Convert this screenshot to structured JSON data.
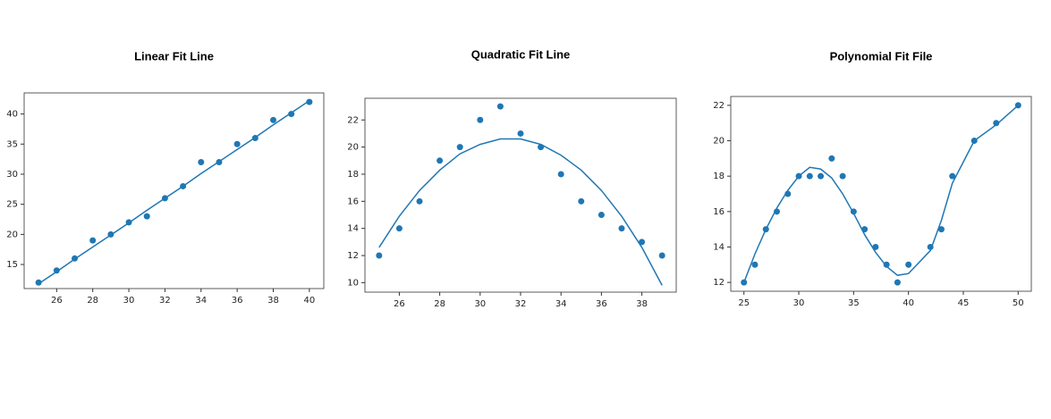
{
  "chart_data": [
    {
      "type": "scatter",
      "title": "Linear Fit Line",
      "x": [
        25,
        26,
        27,
        28,
        29,
        30,
        31,
        32,
        33,
        34,
        35,
        36,
        37,
        38,
        39,
        40
      ],
      "series": [
        {
          "mode": "markers",
          "color": "#1f77b4",
          "values": [
            12,
            14,
            16,
            19,
            20,
            22,
            23,
            26,
            28,
            32,
            32,
            35,
            36,
            39,
            40,
            42
          ]
        },
        {
          "mode": "line",
          "color": "#1f77b4",
          "values": [
            11.8,
            13.8,
            15.9,
            17.9,
            19.9,
            21.9,
            24.0,
            26.0,
            28.0,
            30.1,
            32.1,
            34.1,
            36.1,
            38.2,
            40.2,
            42.2
          ]
        }
      ],
      "xlim": [
        24.2,
        40.8
      ],
      "ylim": [
        11,
        43.5
      ],
      "xticks": [
        26,
        28,
        30,
        32,
        34,
        36,
        38,
        40
      ],
      "yticks": [
        15,
        20,
        25,
        30,
        35,
        40
      ]
    },
    {
      "type": "scatter",
      "title": "Quadratic Fit Line",
      "x": [
        25,
        26,
        27,
        28,
        29,
        30,
        31,
        32,
        33,
        34,
        35,
        36,
        37,
        38,
        39
      ],
      "series": [
        {
          "mode": "markers",
          "color": "#1f77b4",
          "values": [
            12,
            14,
            16,
            19,
            20,
            22,
            23,
            21,
            20,
            18,
            16,
            15,
            14,
            13,
            12
          ]
        },
        {
          "mode": "line",
          "color": "#1f77b4",
          "values": [
            12.6,
            14.9,
            16.8,
            18.3,
            19.5,
            20.2,
            20.6,
            20.6,
            20.2,
            19.4,
            18.3,
            16.8,
            14.9,
            12.6,
            9.8
          ]
        }
      ],
      "xlim": [
        24.3,
        39.7
      ],
      "ylim": [
        9.3,
        23.6
      ],
      "xticks": [
        26,
        28,
        30,
        32,
        34,
        36,
        38
      ],
      "yticks": [
        10,
        12,
        14,
        16,
        18,
        20,
        22
      ]
    },
    {
      "type": "scatter",
      "title": "Polynomial Fit File",
      "x": [
        25,
        26,
        27,
        28,
        29,
        30,
        31,
        32,
        33,
        34,
        35,
        36,
        37,
        38,
        39,
        40,
        42,
        43,
        44,
        46,
        48,
        50
      ],
      "series": [
        {
          "mode": "markers",
          "color": "#1f77b4",
          "values": [
            12,
            13,
            15,
            16,
            17,
            18,
            18,
            18,
            19,
            18,
            16,
            15,
            14,
            13,
            12,
            13,
            14,
            15,
            18,
            20,
            21,
            22
          ]
        },
        {
          "mode": "line",
          "color": "#1f77b4",
          "values": [
            12.0,
            13.6,
            15.0,
            16.2,
            17.2,
            18.0,
            18.5,
            18.4,
            17.9,
            17.0,
            15.9,
            14.7,
            13.7,
            12.9,
            12.4,
            12.5,
            13.8,
            15.5,
            17.6,
            20.0,
            20.9,
            22.0
          ]
        }
      ],
      "xlim": [
        23.8,
        51.2
      ],
      "ylim": [
        11.5,
        22.5
      ],
      "xticks": [
        25,
        30,
        35,
        40,
        45,
        50
      ],
      "yticks": [
        12,
        14,
        16,
        18,
        20,
        22
      ]
    }
  ]
}
